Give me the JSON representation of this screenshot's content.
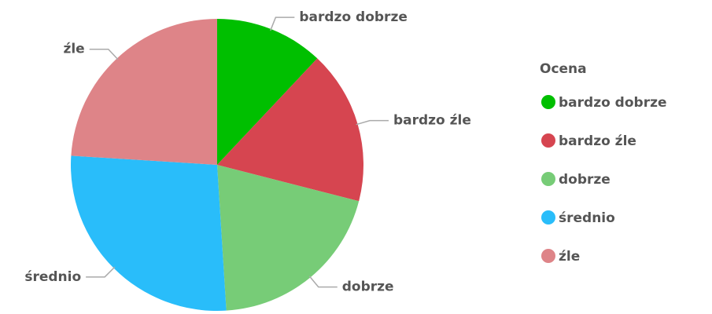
{
  "chart_data": {
    "type": "pie",
    "categories": [
      "bardzo dobrze",
      "bardzo źle",
      "dobrze",
      "średnio",
      "źle"
    ],
    "values": [
      12,
      17,
      20,
      27,
      24
    ],
    "colors": [
      "#00bf00",
      "#d64550",
      "#77cc77",
      "#29bdfa",
      "#de8488"
    ],
    "legend_title": "Ocena",
    "legend": "right"
  }
}
